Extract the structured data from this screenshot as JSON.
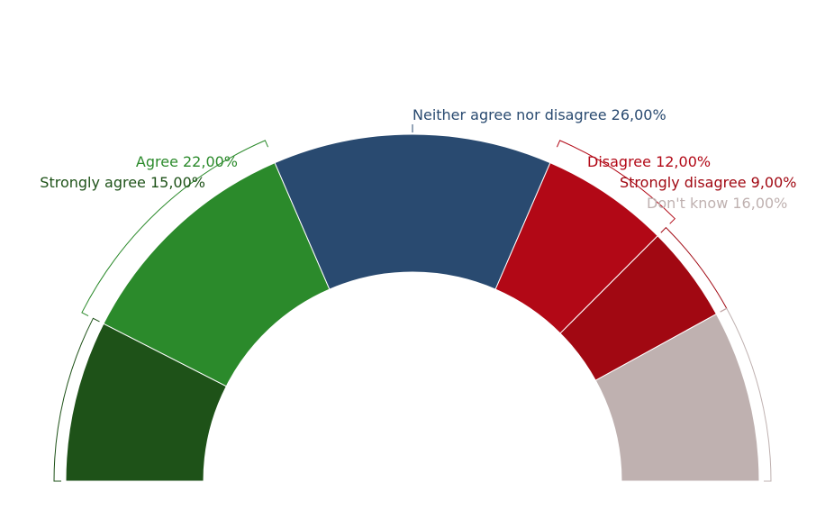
{
  "chart_data": {
    "type": "pie",
    "variant": "semicircle-donut",
    "value_suffix": "%",
    "series": [
      {
        "name": "Strongly agree",
        "value": 15,
        "display": "15,00%",
        "color": "#1e5218"
      },
      {
        "name": "Agree",
        "value": 22,
        "display": "22,00%",
        "color": "#2b8a2b"
      },
      {
        "name": "Neither agree nor disagree",
        "value": 26,
        "display": "26,00%",
        "color": "#294a70"
      },
      {
        "name": "Disagree",
        "value": 12,
        "display": "12,00%",
        "color": "#b20816"
      },
      {
        "name": "Strongly disagree",
        "value": 9,
        "display": "9,00%",
        "color": "#a10812"
      },
      {
        "name": "Don't know",
        "value": 16,
        "display": "16,00%",
        "color": "#bfb1b0"
      }
    ]
  }
}
